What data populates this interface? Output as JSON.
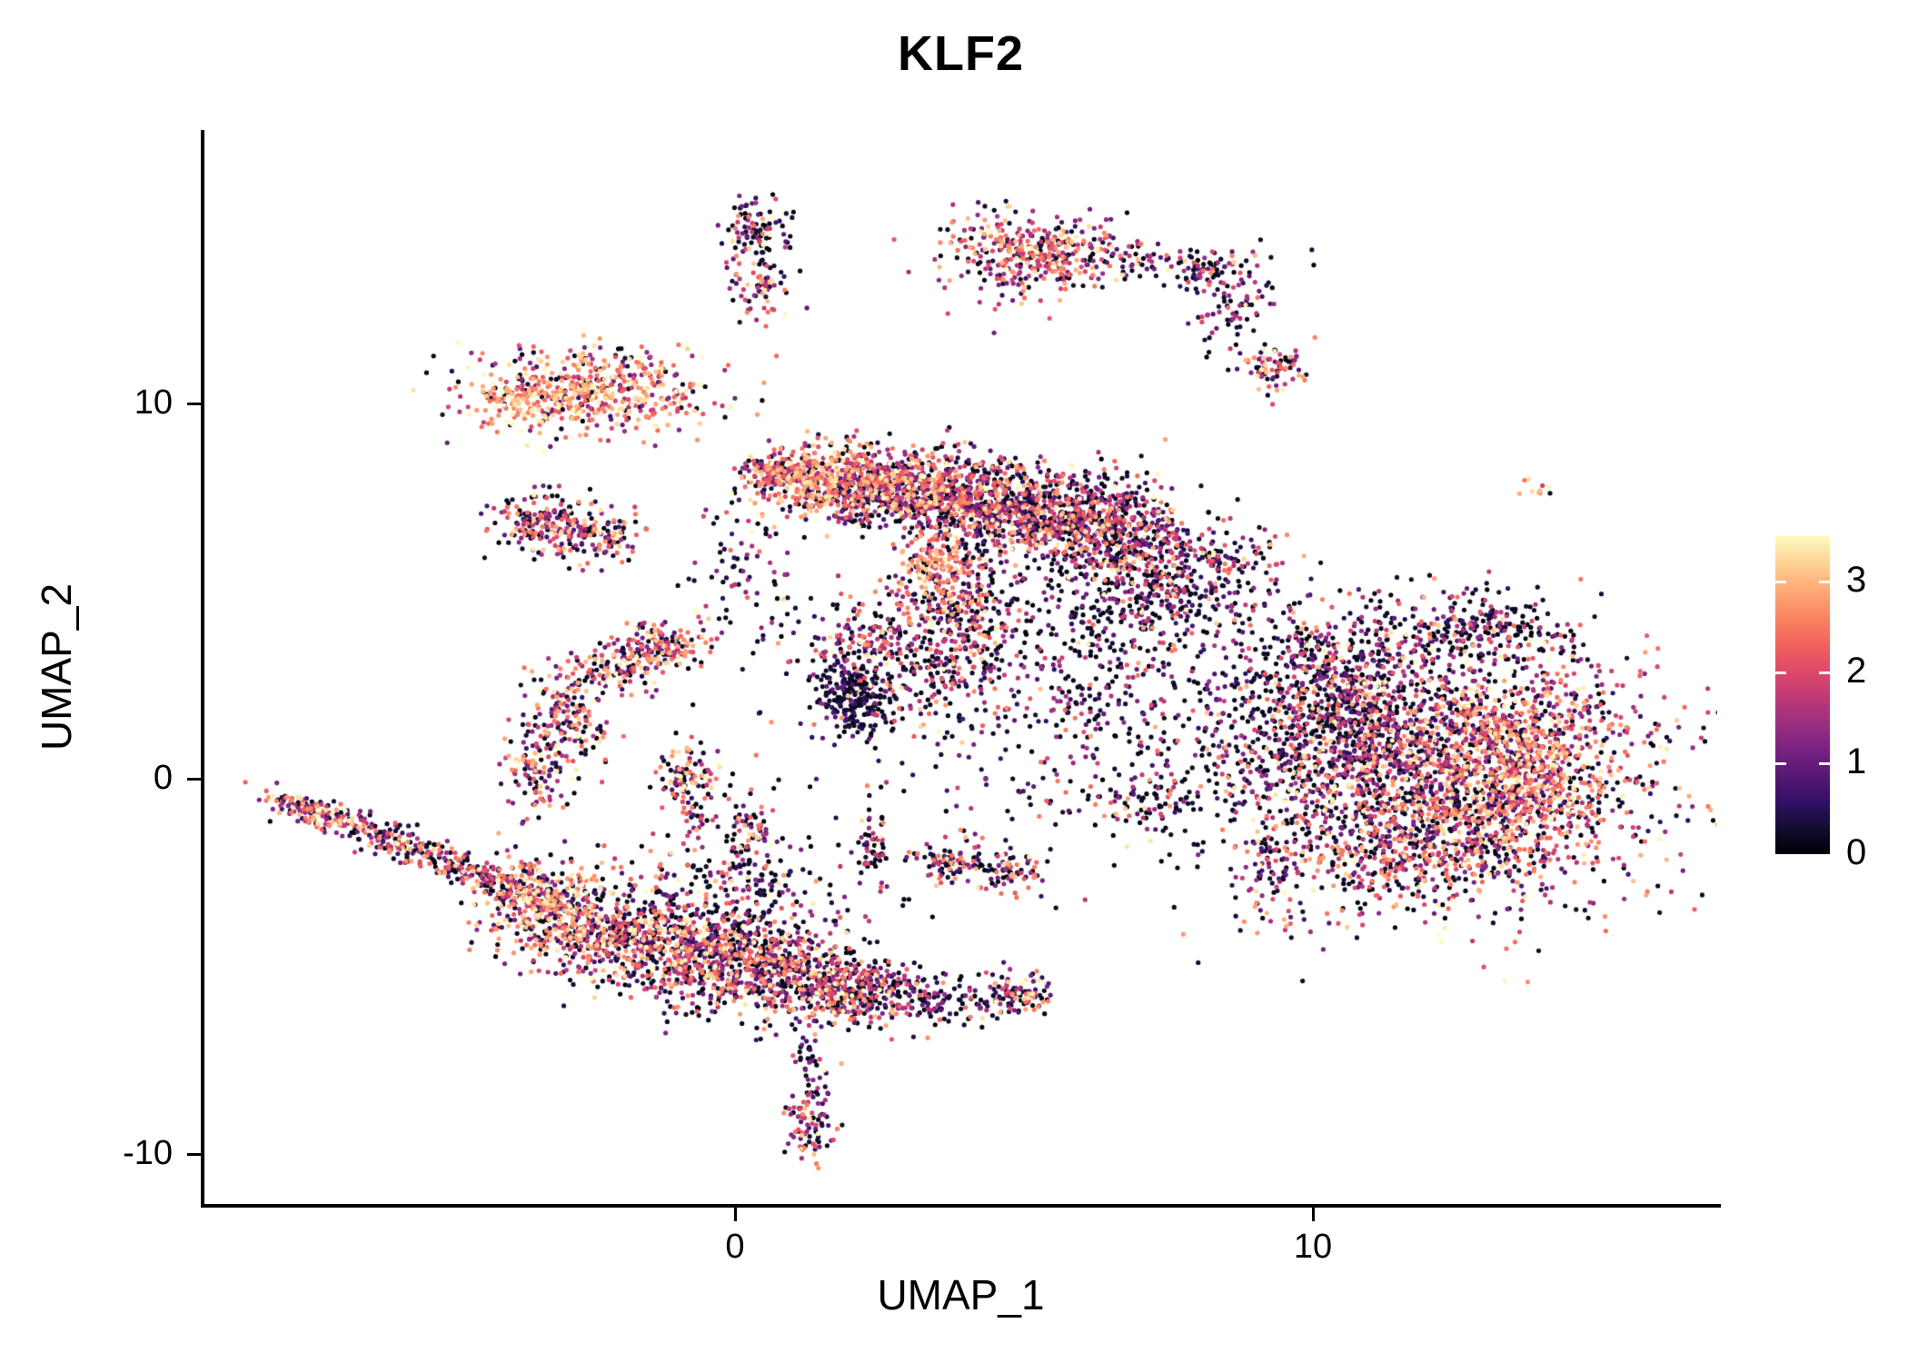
{
  "title": "KLF2",
  "axes": {
    "xlabel": "UMAP_1",
    "ylabel": "UMAP_2"
  },
  "chart_data": {
    "type": "scatter",
    "title": "KLF2",
    "xlabel": "UMAP_1",
    "ylabel": "UMAP_2",
    "x_ticks": [
      0,
      10
    ],
    "y_ticks": [
      -10,
      0,
      10
    ],
    "x_range": [
      -9.2,
      17.0
    ],
    "y_range": [
      -11.3,
      17.3
    ],
    "grid": false,
    "point_radius_px": 2.6,
    "colorbar": {
      "ticks": [
        0,
        1,
        2,
        3
      ],
      "min": 0,
      "max": 3.5,
      "colormap": "magma",
      "colormap_stops": [
        "#000004",
        "#120d31",
        "#331068",
        "#571873",
        "#7b2382",
        "#9e2f7f",
        "#c23a75",
        "#e04c67",
        "#f3655c",
        "#fb8661",
        "#feab77",
        "#fed395",
        "#fcfdbf"
      ],
      "position": "right"
    },
    "clusters": [
      {
        "x": 0.4,
        "y": 14.6,
        "sx": 0.28,
        "sy": 0.45,
        "n": 90,
        "e": 1.2,
        "s": 0.8,
        "p0": 0.3,
        "hot": 0.05
      },
      {
        "x": 0.45,
        "y": 13.1,
        "sx": 0.3,
        "sy": 0.5,
        "n": 70,
        "e": 1.3,
        "s": 0.8,
        "p0": 0.25,
        "hot": 0.08
      },
      {
        "x": 5.2,
        "y": 14.0,
        "sx": 0.75,
        "sy": 0.55,
        "n": 380,
        "e": 1.8,
        "s": 0.8,
        "p0": 0.15,
        "hot": 0.15
      },
      {
        "x": 6.8,
        "y": 13.9,
        "sx": 0.9,
        "sy": 0.25,
        "n": 70,
        "e": 1.2,
        "s": 0.9,
        "p0": 0.3,
        "hot": 0.05
      },
      {
        "x": 8.1,
        "y": 13.5,
        "sx": 0.35,
        "sy": 0.3,
        "n": 70,
        "e": 1.1,
        "s": 0.8,
        "p0": 0.35,
        "hot": 0.03
      },
      {
        "x": 8.7,
        "y": 12.4,
        "sx": 0.3,
        "sy": 0.55,
        "rot": -40,
        "n": 60,
        "e": 1.2,
        "s": 0.7,
        "p0": 0.3,
        "hot": 0.05
      },
      {
        "x": 9.3,
        "y": 11.0,
        "sx": 0.35,
        "sy": 0.35,
        "n": 80,
        "e": 1.6,
        "s": 0.9,
        "p0": 0.2,
        "hot": 0.2
      },
      {
        "x": 13.9,
        "y": 7.7,
        "sx": 0.15,
        "sy": 0.15,
        "n": 10,
        "e": 2.6,
        "s": 0.4,
        "p0": 0.05,
        "hot": 0.5
      },
      {
        "x": -2.6,
        "y": 10.3,
        "sx": 1.1,
        "sy": 0.55,
        "n": 520,
        "e": 2.0,
        "s": 0.8,
        "p0": 0.12,
        "hot": 0.3
      },
      {
        "x": -3.9,
        "y": 10.0,
        "sx": 0.35,
        "sy": 0.3,
        "n": 60,
        "e": 2.8,
        "s": 0.5,
        "p0": 0.05,
        "hot": 0.5
      },
      {
        "x": -3.4,
        "y": 6.9,
        "sx": 0.45,
        "sy": 0.4,
        "n": 150,
        "e": 1.4,
        "s": 0.9,
        "p0": 0.3,
        "hot": 0.1
      },
      {
        "x": -2.4,
        "y": 6.5,
        "sx": 0.45,
        "sy": 0.35,
        "n": 130,
        "e": 1.5,
        "s": 0.9,
        "p0": 0.25,
        "hot": 0.12
      },
      {
        "x": 0.6,
        "y": 8.2,
        "sx": 0.3,
        "sy": 0.25,
        "n": 80,
        "e": 1.8,
        "s": 0.8,
        "p0": 0.15,
        "hot": 0.2
      },
      {
        "x": 1.3,
        "y": 8.0,
        "sx": 0.55,
        "sy": 0.45,
        "n": 350,
        "e": 2.0,
        "s": 0.8,
        "p0": 0.15,
        "hot": 0.3
      },
      {
        "x": 2.6,
        "y": 7.8,
        "sx": 0.8,
        "sy": 0.55,
        "n": 550,
        "e": 1.6,
        "s": 0.8,
        "p0": 0.2,
        "hot": 0.15
      },
      {
        "x": 4.0,
        "y": 7.4,
        "sx": 0.8,
        "sy": 0.6,
        "n": 550,
        "e": 1.5,
        "s": 0.8,
        "p0": 0.25,
        "hot": 0.12
      },
      {
        "x": 5.4,
        "y": 7.0,
        "sx": 0.8,
        "sy": 0.6,
        "n": 500,
        "e": 1.4,
        "s": 0.8,
        "p0": 0.3,
        "hot": 0.1
      },
      {
        "x": 6.6,
        "y": 6.5,
        "sx": 0.7,
        "sy": 0.7,
        "n": 400,
        "e": 1.3,
        "s": 0.8,
        "p0": 0.3,
        "hot": 0.08
      },
      {
        "x": 7.8,
        "y": 5.3,
        "sx": 0.6,
        "sy": 0.85,
        "rot": -40,
        "n": 300,
        "e": 1.2,
        "s": 0.8,
        "p0": 0.35,
        "hot": 0.05
      },
      {
        "x": 3.9,
        "y": 4.3,
        "sx": 0.45,
        "sy": 1.2,
        "n": 350,
        "e": 1.5,
        "s": 0.9,
        "p0": 0.25,
        "hot": 0.15
      },
      {
        "x": 3.4,
        "y": 5.6,
        "sx": 0.3,
        "sy": 0.4,
        "n": 80,
        "e": 2.3,
        "s": 0.6,
        "p0": 0.1,
        "hot": 0.35
      },
      {
        "x": 2.1,
        "y": 2.1,
        "sx": 0.35,
        "sy": 0.5,
        "n": 220,
        "e": 0.4,
        "s": 0.4,
        "p0": 0.6,
        "hot": 0.01
      },
      {
        "x": 2.5,
        "y": 3.4,
        "sx": 0.6,
        "sy": 0.8,
        "n": 260,
        "e": 1.3,
        "s": 0.9,
        "p0": 0.3,
        "hot": 0.1
      },
      {
        "x": 6.3,
        "y": 2.5,
        "sx": 1.6,
        "sy": 1.6,
        "n": 420,
        "e": 1.0,
        "s": 0.8,
        "p0": 0.4,
        "hot": 0.04
      },
      {
        "x": 6.5,
        "y": 4.7,
        "sx": 1.3,
        "sy": 0.8,
        "n": 150,
        "e": 1.0,
        "s": 0.8,
        "p0": 0.4,
        "hot": 0.03
      },
      {
        "x": 12.4,
        "y": 0.2,
        "sx": 1.7,
        "sy": 1.7,
        "n": 2200,
        "e": 1.5,
        "s": 0.9,
        "p0": 0.22,
        "hot": 0.15
      },
      {
        "x": 10.6,
        "y": 1.3,
        "sx": 0.8,
        "sy": 1.3,
        "n": 500,
        "e": 0.9,
        "s": 0.7,
        "p0": 0.45,
        "hot": 0.03
      },
      {
        "x": 13.8,
        "y": 0.3,
        "sx": 0.7,
        "sy": 1.2,
        "n": 400,
        "e": 1.9,
        "s": 0.8,
        "p0": 0.12,
        "hot": 0.25
      },
      {
        "x": 12.8,
        "y": 4.0,
        "sx": 0.7,
        "sy": 0.5,
        "n": 220,
        "e": 1.0,
        "s": 0.8,
        "p0": 0.4,
        "hot": 0.05
      },
      {
        "x": 10.2,
        "y": 3.0,
        "sx": 0.9,
        "sy": 0.9,
        "n": 300,
        "e": 1.1,
        "s": 0.8,
        "p0": 0.35,
        "hot": 0.06
      },
      {
        "x": 11.7,
        "y": -1.9,
        "sx": 1.4,
        "sy": 0.5,
        "n": 250,
        "e": 1.3,
        "s": 0.9,
        "p0": 0.3,
        "hot": 0.1
      },
      {
        "x": 9.2,
        "y": -2.7,
        "sx": 0.4,
        "sy": 0.7,
        "n": 80,
        "e": 1.3,
        "s": 0.9,
        "p0": 0.3,
        "hot": 0.1
      },
      {
        "x": -7.3,
        "y": -0.9,
        "sx": 0.5,
        "sy": 0.18,
        "rot": -28,
        "n": 130,
        "e": 1.6,
        "s": 0.9,
        "p0": 0.2,
        "hot": 0.2
      },
      {
        "x": -6.0,
        "y": -1.6,
        "sx": 0.7,
        "sy": 0.2,
        "rot": -28,
        "n": 150,
        "e": 1.4,
        "s": 0.9,
        "p0": 0.25,
        "hot": 0.12
      },
      {
        "x": -4.6,
        "y": -2.4,
        "sx": 0.7,
        "sy": 0.22,
        "rot": -28,
        "n": 150,
        "e": 1.4,
        "s": 0.9,
        "p0": 0.25,
        "hot": 0.12
      },
      {
        "x": -3.5,
        "y": -3.0,
        "sx": 0.5,
        "sy": 0.3,
        "rot": -28,
        "n": 150,
        "e": 1.5,
        "s": 0.9,
        "p0": 0.25,
        "hot": 0.15
      },
      {
        "x": -3.4,
        "y": 0.3,
        "sx": 0.3,
        "sy": 0.7,
        "n": 130,
        "e": 1.5,
        "s": 0.9,
        "p0": 0.25,
        "hot": 0.12
      },
      {
        "x": -2.9,
        "y": 1.8,
        "sx": 0.28,
        "sy": 0.6,
        "rot": 15,
        "n": 130,
        "e": 1.6,
        "s": 0.9,
        "p0": 0.2,
        "hot": 0.15
      },
      {
        "x": -2.0,
        "y": 3.0,
        "sx": 0.5,
        "sy": 0.35,
        "rot": 35,
        "n": 140,
        "e": 1.6,
        "s": 0.9,
        "p0": 0.2,
        "hot": 0.15
      },
      {
        "x": -1.2,
        "y": 3.5,
        "sx": 0.4,
        "sy": 0.3,
        "n": 120,
        "e": 1.7,
        "s": 0.9,
        "p0": 0.2,
        "hot": 0.18
      },
      {
        "x": -0.8,
        "y": 0.1,
        "sx": 0.3,
        "sy": 0.35,
        "n": 90,
        "e": 1.7,
        "s": 0.9,
        "p0": 0.2,
        "hot": 0.2
      },
      {
        "x": -0.7,
        "y": -0.9,
        "sx": 0.15,
        "sy": 0.3,
        "n": 30,
        "e": 1.2,
        "s": 0.8,
        "p0": 0.3,
        "hot": 0.05
      },
      {
        "x": -3.0,
        "y": -3.6,
        "sx": 0.7,
        "sy": 0.7,
        "n": 350,
        "e": 1.8,
        "s": 0.9,
        "p0": 0.2,
        "hot": 0.25
      },
      {
        "x": -1.7,
        "y": -4.3,
        "sx": 0.8,
        "sy": 0.6,
        "n": 400,
        "e": 1.5,
        "s": 0.9,
        "p0": 0.25,
        "hot": 0.12
      },
      {
        "x": -0.4,
        "y": -4.8,
        "sx": 0.8,
        "sy": 0.6,
        "n": 450,
        "e": 1.5,
        "s": 0.9,
        "p0": 0.25,
        "hot": 0.12
      },
      {
        "x": 1.0,
        "y": -5.3,
        "sx": 0.8,
        "sy": 0.6,
        "n": 450,
        "e": 1.4,
        "s": 0.9,
        "p0": 0.28,
        "hot": 0.1
      },
      {
        "x": 2.2,
        "y": -5.7,
        "sx": 0.6,
        "sy": 0.45,
        "n": 250,
        "e": 1.3,
        "s": 0.9,
        "p0": 0.3,
        "hot": 0.08
      },
      {
        "x": 3.6,
        "y": -5.9,
        "sx": 0.8,
        "sy": 0.35,
        "n": 120,
        "e": 1.0,
        "s": 0.8,
        "p0": 0.4,
        "hot": 0.04
      },
      {
        "x": 4.9,
        "y": -5.8,
        "sx": 0.35,
        "sy": 0.3,
        "n": 90,
        "e": 1.4,
        "s": 0.9,
        "p0": 0.25,
        "hot": 0.1
      },
      {
        "x": -0.5,
        "y": -3.3,
        "sx": 1.3,
        "sy": 0.7,
        "n": 250,
        "e": 1.2,
        "s": 0.9,
        "p0": 0.35,
        "hot": 0.08
      },
      {
        "x": 1.35,
        "y": -7.6,
        "sx": 0.15,
        "sy": 0.5,
        "n": 40,
        "e": 1.0,
        "s": 0.8,
        "p0": 0.35,
        "hot": 0.04
      },
      {
        "x": 1.3,
        "y": -9.3,
        "sx": 0.25,
        "sy": 0.45,
        "n": 80,
        "e": 1.4,
        "s": 0.9,
        "p0": 0.25,
        "hot": 0.1
      },
      {
        "x": 0.3,
        "y": -1.8,
        "sx": 0.25,
        "sy": 0.9,
        "n": 100,
        "e": 1.2,
        "s": 0.9,
        "p0": 0.3,
        "hot": 0.08
      },
      {
        "x": 2.4,
        "y": -1.7,
        "sx": 0.15,
        "sy": 0.6,
        "n": 60,
        "e": 1.1,
        "s": 0.8,
        "p0": 0.35,
        "hot": 0.05
      },
      {
        "x": 3.8,
        "y": -2.2,
        "sx": 0.35,
        "sy": 0.35,
        "n": 90,
        "e": 1.4,
        "s": 0.9,
        "p0": 0.25,
        "hot": 0.12
      },
      {
        "x": 4.8,
        "y": -2.5,
        "sx": 0.3,
        "sy": 0.3,
        "n": 70,
        "e": 1.3,
        "s": 0.9,
        "p0": 0.3,
        "hot": 0.1
      },
      {
        "x": 7.1,
        "y": -0.6,
        "sx": 0.8,
        "sy": 0.4,
        "n": 90,
        "e": 1.0,
        "s": 0.8,
        "p0": 0.4,
        "hot": 0.04
      },
      {
        "x": 0.2,
        "y": 5.5,
        "sx": 0.5,
        "sy": 0.8,
        "n": 70,
        "e": 1.2,
        "s": 0.9,
        "p0": 0.3,
        "hot": 0.08
      },
      {
        "x": 3.5,
        "y": 1.0,
        "sx": 3.0,
        "sy": 2.2,
        "n": 130,
        "e": 0.9,
        "s": 0.8,
        "p0": 0.45,
        "hot": 0.02
      },
      {
        "x": 8.8,
        "y": 0.5,
        "sx": 1.0,
        "sy": 1.0,
        "n": 120,
        "e": 1.0,
        "s": 0.8,
        "p0": 0.4,
        "hot": 0.04
      }
    ]
  }
}
